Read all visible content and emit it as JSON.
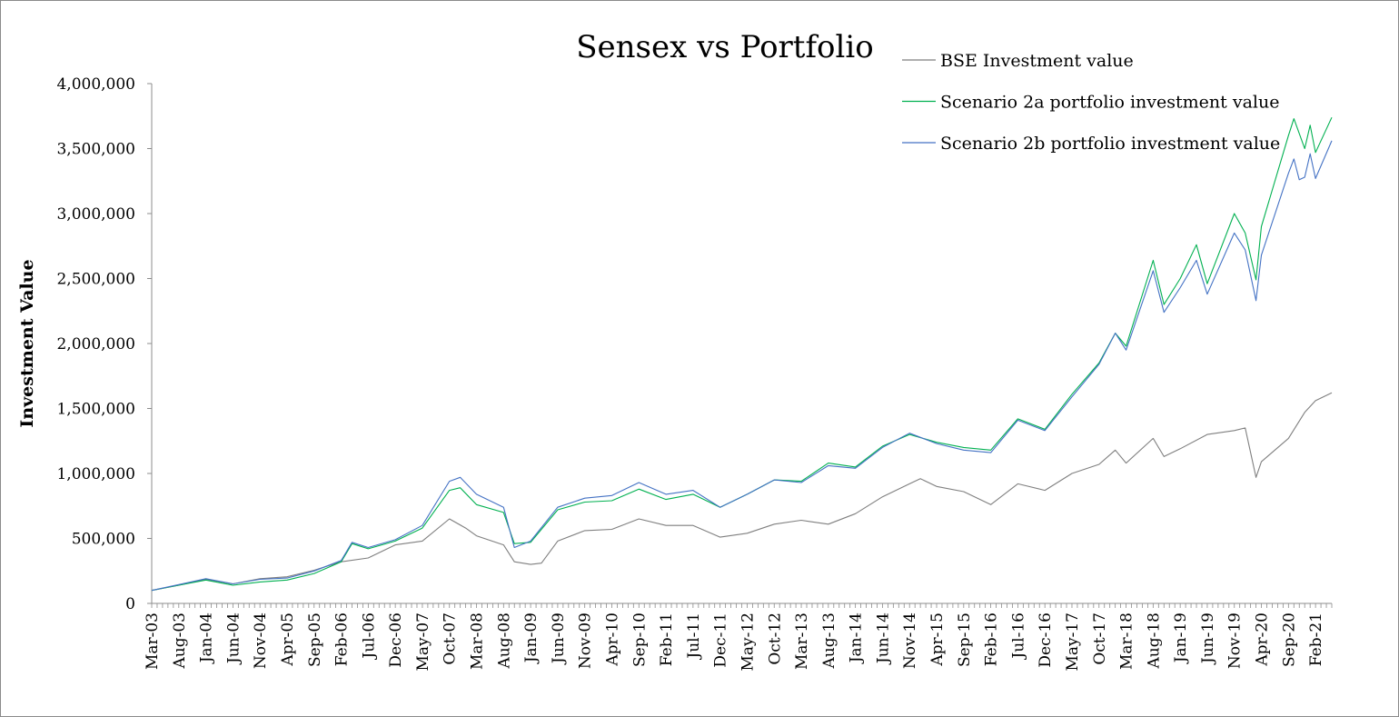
{
  "chart_data": {
    "type": "line",
    "title": "Sensex vs Portfolio",
    "xlabel": "",
    "ylabel": "Investment Value",
    "ylim": [
      0,
      4000000
    ],
    "y_ticks": [
      0,
      500000,
      1000000,
      1500000,
      2000000,
      2500000,
      3000000,
      3500000,
      4000000
    ],
    "y_tick_labels": [
      "0",
      "500,000",
      "1,000,000",
      "1,500,000",
      "2,000,000",
      "2,500,000",
      "3,000,000",
      "3,500,000",
      "4,000,000"
    ],
    "x_tick_labels": [
      "Mar-03",
      "Aug-03",
      "Jan-04",
      "Jun-04",
      "Nov-04",
      "Apr-05",
      "Sep-05",
      "Feb-06",
      "Jul-06",
      "Dec-06",
      "May-07",
      "Oct-07",
      "Mar-08",
      "Aug-08",
      "Jan-09",
      "Jun-09",
      "Nov-09",
      "Apr-10",
      "Sep-10",
      "Feb-11",
      "Jul-11",
      "Dec-11",
      "May-12",
      "Oct-12",
      "Mar-13",
      "Aug-13",
      "Jan-14",
      "Jun-14",
      "Nov-14",
      "Apr-15",
      "Sep-15",
      "Feb-16",
      "Jul-16",
      "Dec-16",
      "May-17",
      "Oct-17",
      "Mar-18",
      "Aug-18",
      "Jan-19",
      "Jun-19",
      "Nov-19",
      "Apr-20",
      "Sep-20",
      "Feb-21"
    ],
    "x_start": "Mar-03",
    "x_end": "May-21",
    "grid": false,
    "legend_position": "top-right",
    "series": [
      {
        "name": "BSE Investment value",
        "color": "#7f7f7f",
        "points": [
          [
            "Mar-03",
            100000
          ],
          [
            "Aug-03",
            140000
          ],
          [
            "Jan-04",
            185000
          ],
          [
            "Jun-04",
            150000
          ],
          [
            "Nov-04",
            190000
          ],
          [
            "Apr-05",
            205000
          ],
          [
            "Sep-05",
            255000
          ],
          [
            "Feb-06",
            320000
          ],
          [
            "Jul-06",
            350000
          ],
          [
            "Dec-06",
            450000
          ],
          [
            "May-07",
            480000
          ],
          [
            "Oct-07",
            650000
          ],
          [
            "Jan-08",
            580000
          ],
          [
            "Mar-08",
            520000
          ],
          [
            "Aug-08",
            450000
          ],
          [
            "Oct-08",
            320000
          ],
          [
            "Jan-09",
            300000
          ],
          [
            "Mar-09",
            310000
          ],
          [
            "Jun-09",
            480000
          ],
          [
            "Nov-09",
            560000
          ],
          [
            "Apr-10",
            570000
          ],
          [
            "Sep-10",
            650000
          ],
          [
            "Feb-11",
            600000
          ],
          [
            "Jul-11",
            600000
          ],
          [
            "Dec-11",
            510000
          ],
          [
            "May-12",
            540000
          ],
          [
            "Oct-12",
            610000
          ],
          [
            "Mar-13",
            640000
          ],
          [
            "Aug-13",
            610000
          ],
          [
            "Jan-14",
            690000
          ],
          [
            "Jun-14",
            820000
          ],
          [
            "Nov-14",
            920000
          ],
          [
            "Jan-15",
            960000
          ],
          [
            "Apr-15",
            900000
          ],
          [
            "Sep-15",
            860000
          ],
          [
            "Feb-16",
            760000
          ],
          [
            "Jul-16",
            920000
          ],
          [
            "Dec-16",
            870000
          ],
          [
            "May-17",
            1000000
          ],
          [
            "Oct-17",
            1070000
          ],
          [
            "Jan-18",
            1180000
          ],
          [
            "Mar-18",
            1080000
          ],
          [
            "Aug-18",
            1270000
          ],
          [
            "Oct-18",
            1130000
          ],
          [
            "Jan-19",
            1190000
          ],
          [
            "Jun-19",
            1300000
          ],
          [
            "Nov-19",
            1330000
          ],
          [
            "Jan-20",
            1350000
          ],
          [
            "Mar-20",
            970000
          ],
          [
            "Apr-20",
            1090000
          ],
          [
            "Sep-20",
            1270000
          ],
          [
            "Dec-20",
            1470000
          ],
          [
            "Feb-21",
            1560000
          ],
          [
            "May-21",
            1620000
          ]
        ]
      },
      {
        "name": "Scenario 2a portfolio investment value",
        "color": "#00b050",
        "points": [
          [
            "Mar-03",
            100000
          ],
          [
            "Aug-03",
            140000
          ],
          [
            "Jan-04",
            180000
          ],
          [
            "Jun-04",
            140000
          ],
          [
            "Nov-04",
            165000
          ],
          [
            "Apr-05",
            180000
          ],
          [
            "Sep-05",
            230000
          ],
          [
            "Feb-06",
            320000
          ],
          [
            "Apr-06",
            460000
          ],
          [
            "Jul-06",
            420000
          ],
          [
            "Dec-06",
            480000
          ],
          [
            "May-07",
            580000
          ],
          [
            "Oct-07",
            870000
          ],
          [
            "Dec-07",
            890000
          ],
          [
            "Mar-08",
            760000
          ],
          [
            "Aug-08",
            700000
          ],
          [
            "Oct-08",
            460000
          ],
          [
            "Jan-09",
            470000
          ],
          [
            "Jun-09",
            720000
          ],
          [
            "Nov-09",
            780000
          ],
          [
            "Apr-10",
            790000
          ],
          [
            "Sep-10",
            880000
          ],
          [
            "Feb-11",
            800000
          ],
          [
            "Jul-11",
            840000
          ],
          [
            "Dec-11",
            740000
          ],
          [
            "May-12",
            840000
          ],
          [
            "Oct-12",
            950000
          ],
          [
            "Mar-13",
            940000
          ],
          [
            "Aug-13",
            1080000
          ],
          [
            "Jan-14",
            1050000
          ],
          [
            "Jun-14",
            1210000
          ],
          [
            "Nov-14",
            1300000
          ],
          [
            "Apr-15",
            1240000
          ],
          [
            "Sep-15",
            1200000
          ],
          [
            "Feb-16",
            1180000
          ],
          [
            "Jul-16",
            1420000
          ],
          [
            "Dec-16",
            1340000
          ],
          [
            "May-17",
            1610000
          ],
          [
            "Oct-17",
            1850000
          ],
          [
            "Jan-18",
            2080000
          ],
          [
            "Mar-18",
            1980000
          ],
          [
            "Aug-18",
            2640000
          ],
          [
            "Oct-18",
            2300000
          ],
          [
            "Jan-19",
            2500000
          ],
          [
            "Apr-19",
            2760000
          ],
          [
            "Jun-19",
            2460000
          ],
          [
            "Nov-19",
            3000000
          ],
          [
            "Jan-20",
            2850000
          ],
          [
            "Mar-20",
            2490000
          ],
          [
            "Apr-20",
            2900000
          ],
          [
            "Sep-20",
            3600000
          ],
          [
            "Oct-20",
            3730000
          ],
          [
            "Dec-20",
            3500000
          ],
          [
            "Jan-21",
            3680000
          ],
          [
            "Feb-21",
            3470000
          ],
          [
            "May-21",
            3740000
          ]
        ]
      },
      {
        "name": "Scenario 2b portfolio investment value",
        "color": "#4472c4",
        "points": [
          [
            "Mar-03",
            100000
          ],
          [
            "Aug-03",
            145000
          ],
          [
            "Jan-04",
            190000
          ],
          [
            "Jun-04",
            150000
          ],
          [
            "Nov-04",
            185000
          ],
          [
            "Apr-05",
            195000
          ],
          [
            "Sep-05",
            250000
          ],
          [
            "Feb-06",
            330000
          ],
          [
            "Apr-06",
            470000
          ],
          [
            "Jul-06",
            430000
          ],
          [
            "Dec-06",
            490000
          ],
          [
            "May-07",
            600000
          ],
          [
            "Oct-07",
            940000
          ],
          [
            "Dec-07",
            970000
          ],
          [
            "Mar-08",
            840000
          ],
          [
            "Aug-08",
            740000
          ],
          [
            "Oct-08",
            430000
          ],
          [
            "Jan-09",
            480000
          ],
          [
            "Jun-09",
            740000
          ],
          [
            "Nov-09",
            810000
          ],
          [
            "Apr-10",
            830000
          ],
          [
            "Sep-10",
            930000
          ],
          [
            "Feb-11",
            840000
          ],
          [
            "Jul-11",
            870000
          ],
          [
            "Dec-11",
            740000
          ],
          [
            "May-12",
            840000
          ],
          [
            "Oct-12",
            950000
          ],
          [
            "Mar-13",
            930000
          ],
          [
            "Aug-13",
            1060000
          ],
          [
            "Jan-14",
            1040000
          ],
          [
            "Jun-14",
            1200000
          ],
          [
            "Nov-14",
            1310000
          ],
          [
            "Apr-15",
            1230000
          ],
          [
            "Sep-15",
            1180000
          ],
          [
            "Feb-16",
            1160000
          ],
          [
            "Jul-16",
            1410000
          ],
          [
            "Dec-16",
            1330000
          ],
          [
            "May-17",
            1590000
          ],
          [
            "Oct-17",
            1840000
          ],
          [
            "Jan-18",
            2080000
          ],
          [
            "Mar-18",
            1950000
          ],
          [
            "Aug-18",
            2560000
          ],
          [
            "Oct-18",
            2240000
          ],
          [
            "Jan-19",
            2430000
          ],
          [
            "Apr-19",
            2640000
          ],
          [
            "Jun-19",
            2380000
          ],
          [
            "Nov-19",
            2850000
          ],
          [
            "Jan-20",
            2720000
          ],
          [
            "Mar-20",
            2330000
          ],
          [
            "Apr-20",
            2680000
          ],
          [
            "Sep-20",
            3310000
          ],
          [
            "Oct-20",
            3420000
          ],
          [
            "Nov-20",
            3260000
          ],
          [
            "Dec-20",
            3280000
          ],
          [
            "Jan-21",
            3460000
          ],
          [
            "Feb-21",
            3270000
          ],
          [
            "May-21",
            3560000
          ]
        ]
      }
    ]
  }
}
